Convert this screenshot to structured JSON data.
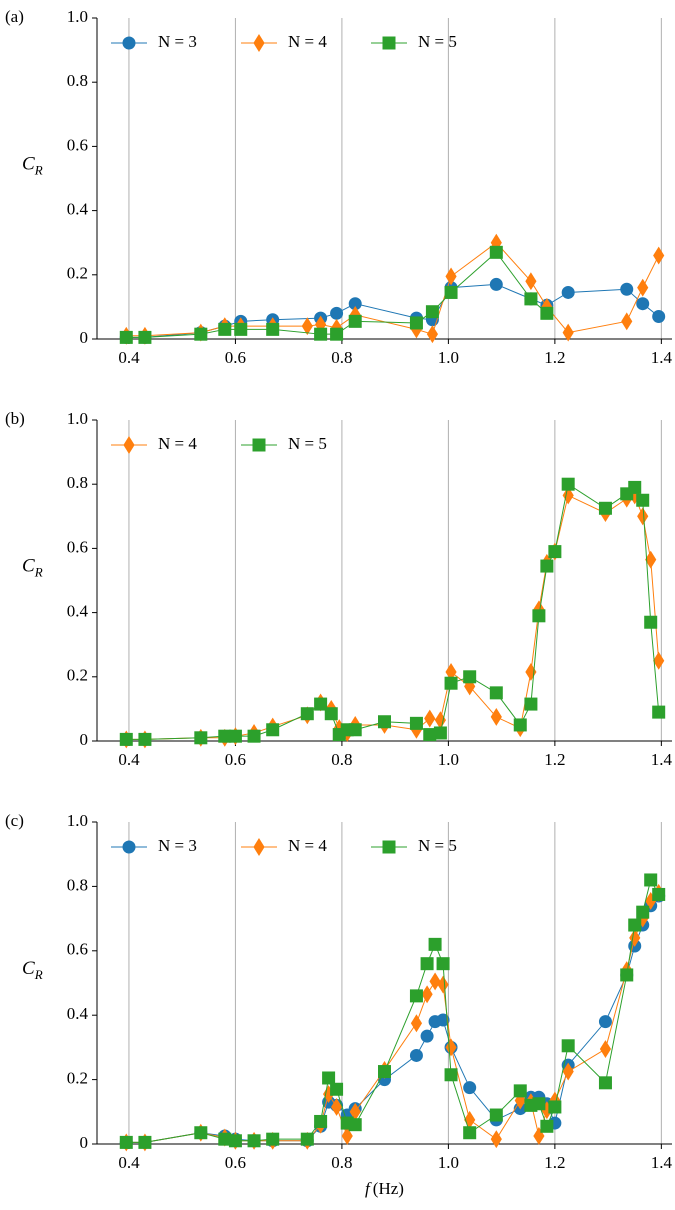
{
  "chart_data": [
    {
      "type": "line",
      "panel_label": "(a)",
      "ylabel": {
        "symbol": "C",
        "subscript": "R"
      },
      "xlim": [
        0.34,
        1.42
      ],
      "ylim": [
        0,
        1
      ],
      "xticks": [
        0.4,
        0.6,
        0.8,
        {
          "value": 1,
          "label": "1.0"
        },
        1.2,
        1.4
      ],
      "yticks": [
        0,
        0.2,
        0.4,
        0.6,
        0.8,
        {
          "value": 1,
          "label": "1.0"
        }
      ],
      "grid": "x",
      "legend": "upper left",
      "series": [
        {
          "name": "N = 3",
          "color": "#1f77b4",
          "marker": "circle",
          "x": [
            0.395,
            0.43,
            0.535,
            0.58,
            0.61,
            0.67,
            0.76,
            0.79,
            0.825,
            0.94,
            0.97,
            1.005,
            1.09,
            1.155,
            1.185,
            1.225,
            1.335,
            1.365,
            1.395
          ],
          "values": [
            0.005,
            0.005,
            0.02,
            0.04,
            0.055,
            0.06,
            0.065,
            0.08,
            0.11,
            0.065,
            0.06,
            0.16,
            0.17,
            0.125,
            0.105,
            0.145,
            0.155,
            0.11,
            0.07
          ]
        },
        {
          "name": "N = 4",
          "color": "#ff7f0e",
          "marker": "diamond",
          "x": [
            0.395,
            0.43,
            0.535,
            0.58,
            0.61,
            0.67,
            0.735,
            0.76,
            0.79,
            0.825,
            0.94,
            0.97,
            1.005,
            1.09,
            1.155,
            1.185,
            1.225,
            1.335,
            1.365,
            1.395
          ],
          "values": [
            0.01,
            0.01,
            0.02,
            0.04,
            0.04,
            0.04,
            0.04,
            0.045,
            0.035,
            0.075,
            0.03,
            0.015,
            0.195,
            0.3,
            0.18,
            0.1,
            0.02,
            0.055,
            0.16,
            0.26
          ]
        },
        {
          "name": "N = 5",
          "color": "#2ca02c",
          "marker": "square",
          "x": [
            0.395,
            0.43,
            0.535,
            0.58,
            0.61,
            0.67,
            0.76,
            0.79,
            0.825,
            0.94,
            0.97,
            1.005,
            1.09,
            1.155,
            1.185
          ],
          "values": [
            0.005,
            0.005,
            0.015,
            0.03,
            0.03,
            0.03,
            0.015,
            0.015,
            0.055,
            0.05,
            0.085,
            0.145,
            0.27,
            0.125,
            0.08
          ]
        }
      ]
    },
    {
      "type": "line",
      "panel_label": "(b)",
      "ylabel": {
        "symbol": "C",
        "subscript": "R"
      },
      "xlim": [
        0.34,
        1.42
      ],
      "ylim": [
        0,
        1
      ],
      "xticks": [
        0.4,
        0.6,
        0.8,
        {
          "value": 1,
          "label": "1.0"
        },
        1.2,
        1.4
      ],
      "yticks": [
        0,
        0.2,
        0.4,
        0.6,
        0.8,
        {
          "value": 1,
          "label": "1.0"
        }
      ],
      "grid": "x",
      "legend": "upper left",
      "series": [
        {
          "name": "N = 4",
          "color": "#ff7f0e",
          "marker": "diamond",
          "x": [
            0.395,
            0.43,
            0.535,
            0.58,
            0.6,
            0.635,
            0.67,
            0.735,
            0.76,
            0.78,
            0.795,
            0.81,
            0.825,
            0.88,
            0.94,
            0.965,
            0.985,
            1.005,
            1.04,
            1.09,
            1.135,
            1.155,
            1.17,
            1.185,
            1.2,
            1.225,
            1.295,
            1.335,
            1.35,
            1.365,
            1.38,
            1.395
          ],
          "values": [
            0.005,
            0.005,
            0.01,
            0.01,
            0.015,
            0.025,
            0.045,
            0.08,
            0.12,
            0.1,
            0.04,
            0.025,
            0.05,
            0.05,
            0.035,
            0.07,
            0.065,
            0.215,
            0.17,
            0.075,
            0.04,
            0.215,
            0.41,
            0.555,
            0.59,
            0.765,
            0.71,
            0.755,
            0.765,
            0.7,
            0.565,
            0.25
          ]
        },
        {
          "name": "N = 5",
          "color": "#2ca02c",
          "marker": "square",
          "x": [
            0.395,
            0.43,
            0.535,
            0.58,
            0.6,
            0.635,
            0.67,
            0.735,
            0.76,
            0.78,
            0.795,
            0.81,
            0.825,
            0.88,
            0.94,
            0.965,
            0.985,
            1.005,
            1.04,
            1.09,
            1.135,
            1.155,
            1.17,
            1.185,
            1.2,
            1.225,
            1.295,
            1.335,
            1.35,
            1.365,
            1.38,
            1.395
          ],
          "values": [
            0.005,
            0.005,
            0.01,
            0.015,
            0.015,
            0.015,
            0.035,
            0.085,
            0.115,
            0.085,
            0.02,
            0.035,
            0.035,
            0.06,
            0.055,
            0.02,
            0.025,
            0.18,
            0.2,
            0.15,
            0.05,
            0.115,
            0.39,
            0.545,
            0.59,
            0.8,
            0.725,
            0.77,
            0.79,
            0.75,
            0.37,
            0.09
          ]
        }
      ]
    },
    {
      "type": "line",
      "panel_label": "(c)",
      "ylabel": {
        "symbol": "C",
        "subscript": "R"
      },
      "xlabel": {
        "symbol": "f",
        "unit": "(Hz)"
      },
      "xlim": [
        0.34,
        1.42
      ],
      "ylim": [
        0,
        1
      ],
      "xticks": [
        0.4,
        0.6,
        0.8,
        {
          "value": 1,
          "label": "1.0"
        },
        1.2,
        1.4
      ],
      "yticks": [
        0,
        0.2,
        0.4,
        0.6,
        0.8,
        {
          "value": 1,
          "label": "1.0"
        }
      ],
      "grid": "x",
      "legend": "upper left",
      "series": [
        {
          "name": "N = 3",
          "color": "#1f77b4",
          "marker": "circle",
          "x": [
            0.395,
            0.43,
            0.535,
            0.58,
            0.6,
            0.635,
            0.67,
            0.735,
            0.76,
            0.775,
            0.79,
            0.81,
            0.825,
            0.88,
            0.94,
            0.96,
            0.975,
            0.99,
            1.005,
            1.04,
            1.09,
            1.135,
            1.155,
            1.17,
            1.185,
            1.2,
            1.225,
            1.295,
            1.335,
            1.35,
            1.365,
            1.38,
            1.395
          ],
          "values": [
            0.005,
            0.005,
            0.035,
            0.025,
            0.015,
            0.01,
            0.01,
            0.01,
            0.055,
            0.13,
            0.12,
            0.09,
            0.11,
            0.2,
            0.275,
            0.335,
            0.38,
            0.385,
            0.3,
            0.175,
            0.075,
            0.11,
            0.145,
            0.145,
            0.125,
            0.065,
            0.245,
            0.38,
            0.525,
            0.615,
            0.68,
            0.74,
            0.77
          ]
        },
        {
          "name": "N = 4",
          "color": "#ff7f0e",
          "marker": "diamond",
          "x": [
            0.395,
            0.43,
            0.535,
            0.58,
            0.6,
            0.635,
            0.67,
            0.735,
            0.76,
            0.775,
            0.79,
            0.81,
            0.825,
            0.88,
            0.94,
            0.96,
            0.975,
            0.99,
            1.005,
            1.04,
            1.09,
            1.135,
            1.155,
            1.17,
            1.185,
            1.2,
            1.225,
            1.295,
            1.335,
            1.35,
            1.365,
            1.38,
            1.395
          ],
          "values": [
            0.005,
            0.005,
            0.035,
            0.02,
            0.01,
            0.01,
            0.01,
            0.01,
            0.06,
            0.155,
            0.115,
            0.025,
            0.1,
            0.23,
            0.375,
            0.465,
            0.505,
            0.495,
            0.3,
            0.075,
            0.015,
            0.135,
            0.13,
            0.025,
            0.105,
            0.135,
            0.225,
            0.295,
            0.54,
            0.64,
            0.7,
            0.755,
            0.78
          ]
        },
        {
          "name": "N = 5",
          "color": "#2ca02c",
          "marker": "square",
          "x": [
            0.395,
            0.43,
            0.535,
            0.58,
            0.6,
            0.635,
            0.67,
            0.735,
            0.76,
            0.775,
            0.79,
            0.81,
            0.825,
            0.88,
            0.94,
            0.96,
            0.975,
            0.99,
            1.005,
            1.04,
            1.09,
            1.135,
            1.155,
            1.17,
            1.185,
            1.2,
            1.225,
            1.295,
            1.335,
            1.35,
            1.365,
            1.38,
            1.395
          ],
          "values": [
            0.005,
            0.005,
            0.035,
            0.015,
            0.01,
            0.01,
            0.015,
            0.015,
            0.07,
            0.205,
            0.17,
            0.065,
            0.06,
            0.225,
            0.46,
            0.56,
            0.62,
            0.56,
            0.215,
            0.035,
            0.09,
            0.165,
            0.12,
            0.125,
            0.055,
            0.115,
            0.305,
            0.19,
            0.525,
            0.68,
            0.72,
            0.82,
            0.775
          ]
        }
      ]
    }
  ]
}
